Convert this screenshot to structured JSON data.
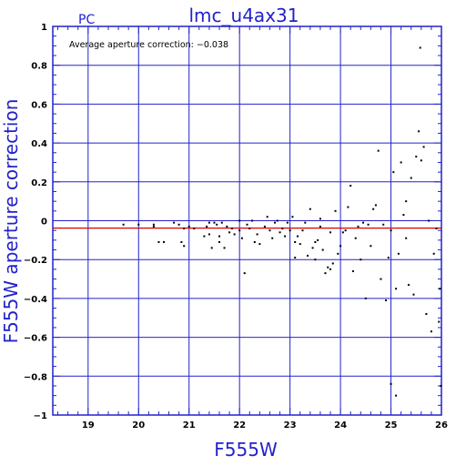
{
  "colors": {
    "axis": "#2222cc",
    "grid": "#2222cc",
    "zero_line": "#2222cc",
    "average_line": "#dd0000",
    "points": "#000000",
    "text": "#000000"
  },
  "chart_data": {
    "type": "scatter",
    "camera_label": "PC",
    "title": "lmc_u4ax31",
    "xlabel": "F555W",
    "ylabel": "F555W aperture correction",
    "annotation": "Average aperture correction: −0.038",
    "average": -0.038,
    "xlim": [
      18.3,
      26.0
    ],
    "ylim": [
      -1.0,
      1.0
    ],
    "xticks": [
      19,
      20,
      21,
      22,
      23,
      24,
      25,
      26
    ],
    "yticks": [
      -1,
      -0.8,
      -0.6,
      -0.4,
      -0.2,
      0,
      0.2,
      0.4,
      0.6,
      0.8,
      1
    ],
    "xtick_labels": [
      "19",
      "20",
      "21",
      "22",
      "23",
      "24",
      "25",
      "26"
    ],
    "ytick_labels": [
      "−1",
      "−0.8",
      "−0.6",
      "−0.4",
      "−0.2",
      "0",
      "0.2",
      "0.4",
      "0.6",
      "0.8",
      "1"
    ],
    "grid": true,
    "points": [
      [
        19.7,
        -0.02
      ],
      [
        20.0,
        -0.02
      ],
      [
        20.3,
        -0.03
      ],
      [
        20.3,
        -0.02
      ],
      [
        20.4,
        -0.11
      ],
      [
        20.5,
        -0.11
      ],
      [
        20.7,
        -0.01
      ],
      [
        20.8,
        -0.02
      ],
      [
        20.85,
        -0.11
      ],
      [
        20.9,
        -0.13
      ],
      [
        20.9,
        -0.04
      ],
      [
        21.0,
        -0.03
      ],
      [
        21.1,
        -0.04
      ],
      [
        21.3,
        -0.08
      ],
      [
        21.35,
        -0.03
      ],
      [
        21.4,
        -0.01
      ],
      [
        21.4,
        -0.07
      ],
      [
        21.45,
        -0.14
      ],
      [
        21.5,
        -0.01
      ],
      [
        21.55,
        -0.02
      ],
      [
        21.6,
        -0.11
      ],
      [
        21.6,
        -0.08
      ],
      [
        21.65,
        -0.01
      ],
      [
        21.7,
        -0.14
      ],
      [
        21.75,
        -0.03
      ],
      [
        21.8,
        -0.06
      ],
      [
        21.85,
        -0.04
      ],
      [
        21.9,
        -0.07
      ],
      [
        22.0,
        -0.05
      ],
      [
        22.0,
        0.0
      ],
      [
        22.05,
        -0.09
      ],
      [
        22.1,
        -0.27
      ],
      [
        22.15,
        -0.02
      ],
      [
        22.2,
        -0.04
      ],
      [
        22.25,
        0.0
      ],
      [
        22.3,
        -0.11
      ],
      [
        22.35,
        -0.07
      ],
      [
        22.4,
        -0.12
      ],
      [
        22.5,
        -0.03
      ],
      [
        22.55,
        0.02
      ],
      [
        22.6,
        -0.05
      ],
      [
        22.65,
        -0.09
      ],
      [
        22.7,
        -0.01
      ],
      [
        22.75,
        0.0
      ],
      [
        22.8,
        -0.06
      ],
      [
        22.85,
        -0.04
      ],
      [
        22.9,
        -0.08
      ],
      [
        22.95,
        -0.01
      ],
      [
        23.0,
        -0.05
      ],
      [
        23.05,
        0.02
      ],
      [
        23.1,
        -0.11
      ],
      [
        23.1,
        -0.19
      ],
      [
        23.15,
        -0.08
      ],
      [
        23.2,
        -0.12
      ],
      [
        23.25,
        -0.05
      ],
      [
        23.3,
        -0.01
      ],
      [
        23.35,
        -0.18
      ],
      [
        23.4,
        0.06
      ],
      [
        23.45,
        -0.14
      ],
      [
        23.5,
        -0.11
      ],
      [
        23.5,
        -0.2
      ],
      [
        23.55,
        -0.1
      ],
      [
        23.6,
        -0.03
      ],
      [
        23.6,
        0.01
      ],
      [
        23.65,
        -0.15
      ],
      [
        23.7,
        -0.27
      ],
      [
        23.75,
        -0.24
      ],
      [
        23.8,
        -0.06
      ],
      [
        23.8,
        -0.25
      ],
      [
        23.85,
        -0.22
      ],
      [
        23.9,
        0.05
      ],
      [
        23.95,
        -0.17
      ],
      [
        24.0,
        -0.13
      ],
      [
        24.05,
        -0.06
      ],
      [
        24.1,
        -0.05
      ],
      [
        24.15,
        0.07
      ],
      [
        24.2,
        0.18
      ],
      [
        24.25,
        -0.26
      ],
      [
        24.3,
        -0.09
      ],
      [
        24.35,
        -0.03
      ],
      [
        24.4,
        -0.2
      ],
      [
        24.45,
        -0.01
      ],
      [
        24.5,
        -0.4
      ],
      [
        24.55,
        -0.02
      ],
      [
        24.6,
        -0.13
      ],
      [
        24.65,
        0.06
      ],
      [
        24.7,
        0.08
      ],
      [
        24.75,
        0.36
      ],
      [
        24.8,
        -0.3
      ],
      [
        24.85,
        -0.02
      ],
      [
        24.9,
        -0.41
      ],
      [
        24.95,
        -0.19
      ],
      [
        25.0,
        -0.84
      ],
      [
        25.0,
        -0.05
      ],
      [
        25.05,
        0.25
      ],
      [
        25.1,
        -0.35
      ],
      [
        25.1,
        -0.9
      ],
      [
        25.15,
        -0.17
      ],
      [
        25.2,
        0.3
      ],
      [
        25.25,
        0.03
      ],
      [
        25.3,
        0.1
      ],
      [
        25.3,
        -0.09
      ],
      [
        25.35,
        -0.33
      ],
      [
        25.4,
        0.22
      ],
      [
        25.45,
        -0.38
      ],
      [
        25.5,
        0.33
      ],
      [
        25.55,
        0.46
      ],
      [
        25.58,
        0.89
      ],
      [
        25.6,
        0.31
      ],
      [
        25.65,
        0.38
      ],
      [
        25.7,
        -0.48
      ],
      [
        25.75,
        0.0
      ],
      [
        25.8,
        -0.57
      ],
      [
        25.85,
        -0.17
      ],
      [
        25.9,
        -0.04
      ],
      [
        25.95,
        -0.52
      ],
      [
        25.97,
        -0.35
      ],
      [
        25.99,
        -0.85
      ]
    ]
  }
}
